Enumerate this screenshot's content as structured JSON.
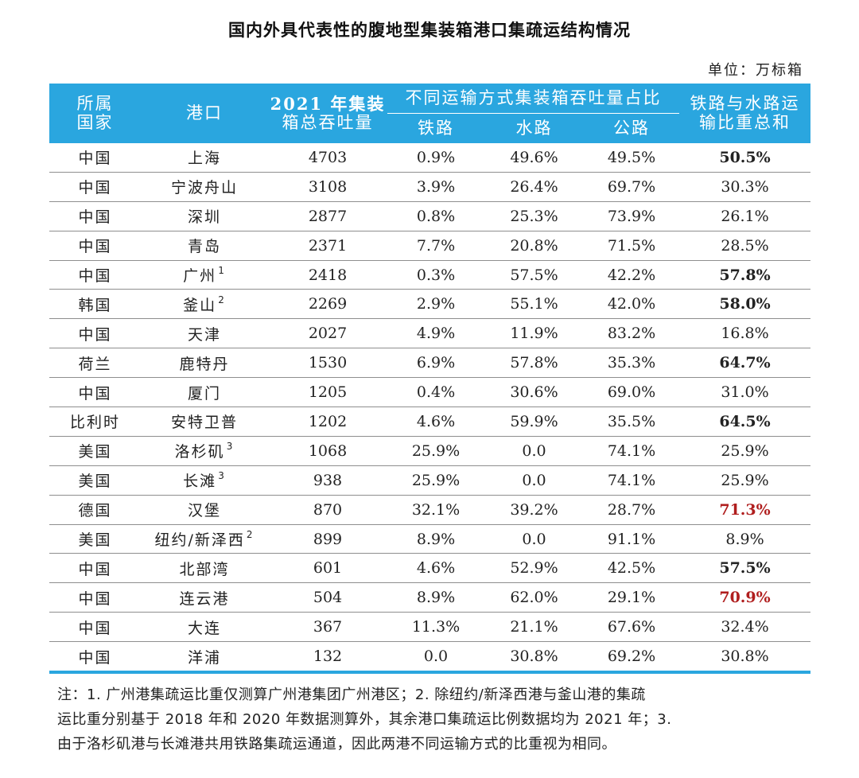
{
  "title": "国内外具代表性的腹地型集装箱港口集疏运结构情况",
  "unit": "单位：万标箱",
  "headers": {
    "country_l1": "所属",
    "country_l2": "国家",
    "port": "港口",
    "throughput_l1": "2021 年集装",
    "throughput_l2": "箱总吞吐量",
    "group": "不同运输方式集装箱吞吐量占比",
    "rail": "铁路",
    "water": "水路",
    "road": "公路",
    "sum_l1": "铁路与水路运",
    "sum_l2": "输比重总和"
  },
  "rows": [
    {
      "country": "中国",
      "port": "上海",
      "note": "",
      "throughput": "4703",
      "rail": "0.9%",
      "water": "49.6%",
      "road": "49.5%",
      "sum": "50.5%",
      "style": "bold"
    },
    {
      "country": "中国",
      "port": "宁波舟山",
      "note": "",
      "throughput": "3108",
      "rail": "3.9%",
      "water": "26.4%",
      "road": "69.7%",
      "sum": "30.3%",
      "style": "normal"
    },
    {
      "country": "中国",
      "port": "深圳",
      "note": "",
      "throughput": "2877",
      "rail": "0.8%",
      "water": "25.3%",
      "road": "73.9%",
      "sum": "26.1%",
      "style": "normal"
    },
    {
      "country": "中国",
      "port": "青岛",
      "note": "",
      "throughput": "2371",
      "rail": "7.7%",
      "water": "20.8%",
      "road": "71.5%",
      "sum": "28.5%",
      "style": "normal"
    },
    {
      "country": "中国",
      "port": "广州",
      "note": "1",
      "throughput": "2418",
      "rail": "0.3%",
      "water": "57.5%",
      "road": "42.2%",
      "sum": "57.8%",
      "style": "bold"
    },
    {
      "country": "韩国",
      "port": "釜山",
      "note": "2",
      "throughput": "2269",
      "rail": "2.9%",
      "water": "55.1%",
      "road": "42.0%",
      "sum": "58.0%",
      "style": "bold"
    },
    {
      "country": "中国",
      "port": "天津",
      "note": "",
      "throughput": "2027",
      "rail": "4.9%",
      "water": "11.9%",
      "road": "83.2%",
      "sum": "16.8%",
      "style": "normal"
    },
    {
      "country": "荷兰",
      "port": "鹿特丹",
      "note": "",
      "throughput": "1530",
      "rail": "6.9%",
      "water": "57.8%",
      "road": "35.3%",
      "sum": "64.7%",
      "style": "bold"
    },
    {
      "country": "中国",
      "port": "厦门",
      "note": "",
      "throughput": "1205",
      "rail": "0.4%",
      "water": "30.6%",
      "road": "69.0%",
      "sum": "31.0%",
      "style": "normal"
    },
    {
      "country": "比利时",
      "port": "安特卫普",
      "note": "",
      "throughput": "1202",
      "rail": "4.6%",
      "water": "59.9%",
      "road": "35.5%",
      "sum": "64.5%",
      "style": "bold"
    },
    {
      "country": "美国",
      "port": "洛杉矶",
      "note": "3",
      "throughput": "1068",
      "rail": "25.9%",
      "water": "0.0",
      "road": "74.1%",
      "sum": "25.9%",
      "style": "normal"
    },
    {
      "country": "美国",
      "port": "长滩",
      "note": "3",
      "throughput": "938",
      "rail": "25.9%",
      "water": "0.0",
      "road": "74.1%",
      "sum": "25.9%",
      "style": "normal"
    },
    {
      "country": "德国",
      "port": "汉堡",
      "note": "",
      "throughput": "870",
      "rail": "32.1%",
      "water": "39.2%",
      "road": "28.7%",
      "sum": "71.3%",
      "style": "red"
    },
    {
      "country": "美国",
      "port": "纽约/新泽西",
      "note": "2",
      "throughput": "899",
      "rail": "8.9%",
      "water": "0.0",
      "road": "91.1%",
      "sum": "8.9%",
      "style": "normal"
    },
    {
      "country": "中国",
      "port": "北部湾",
      "note": "",
      "throughput": "601",
      "rail": "4.6%",
      "water": "52.9%",
      "road": "42.5%",
      "sum": "57.5%",
      "style": "bold"
    },
    {
      "country": "中国",
      "port": "连云港",
      "note": "",
      "throughput": "504",
      "rail": "8.9%",
      "water": "62.0%",
      "road": "29.1%",
      "sum": "70.9%",
      "style": "red"
    },
    {
      "country": "中国",
      "port": "大连",
      "note": "",
      "throughput": "367",
      "rail": "11.3%",
      "water": "21.1%",
      "road": "67.6%",
      "sum": "32.4%",
      "style": "normal"
    },
    {
      "country": "中国",
      "port": "洋浦",
      "note": "",
      "throughput": "132",
      "rail": "0.0",
      "water": "30.8%",
      "road": "69.2%",
      "sum": "30.8%",
      "style": "normal"
    }
  ],
  "notes": [
    "注：1. 广州港集疏运比重仅测算广州港集团广州港区；2. 除纽约/新泽西港与釜山港的集疏",
    "运比重分别基于 2018 年和 2020 年数据测算外，其余港口集疏运比例数据均为 2021 年；3.",
    "由于洛杉矶港与长滩港共用铁路集疏运通道，因此两港不同运输方式的比重视为相同。"
  ],
  "colors": {
    "header_bg": "#2aa6df",
    "highlight_red": "#b01e1e"
  }
}
